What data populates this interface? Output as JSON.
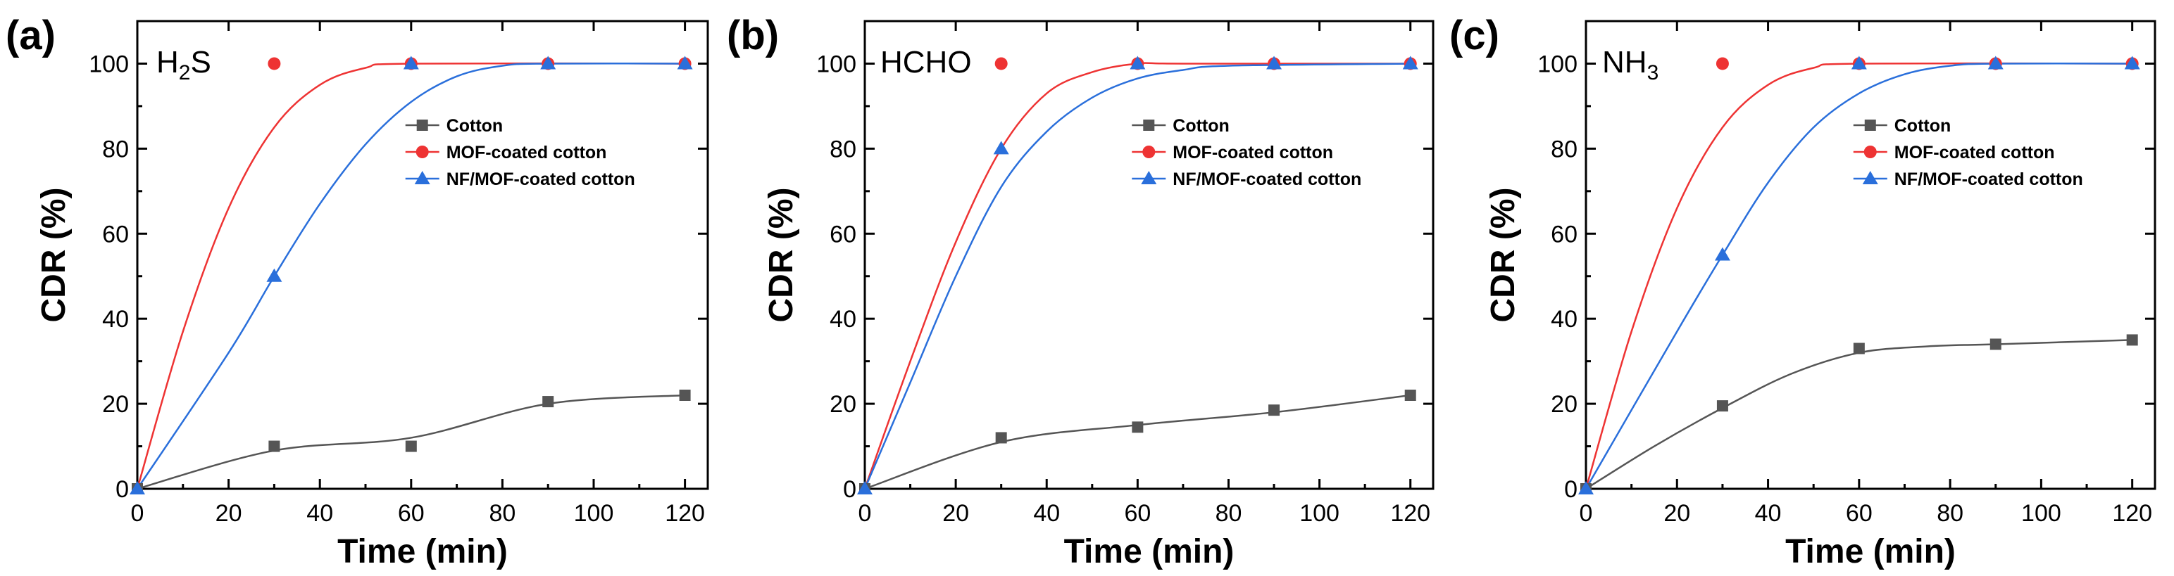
{
  "figure": {
    "x_axis_label": "Time (min)",
    "y_axis_label": "CDR (%)"
  },
  "chart_data": [
    {
      "type": "scatter",
      "panel_label": "(a)",
      "gas_main": "H",
      "gas_sub": "2",
      "gas_tail": "S",
      "xlabel": "Time (min)",
      "ylabel": "CDR (%)",
      "xlim": [
        0,
        125
      ],
      "ylim": [
        0,
        110
      ],
      "xticks": [
        0,
        20,
        40,
        60,
        80,
        100,
        120
      ],
      "yticks": [
        0,
        20,
        40,
        60,
        80,
        100
      ],
      "legend_position": "middle-right",
      "series": [
        {
          "name": "Cotton",
          "marker": "square",
          "color": "#555555",
          "x": [
            0,
            30,
            60,
            90,
            120
          ],
          "y": [
            0,
            10,
            10,
            20.5,
            22
          ]
        },
        {
          "name": "MOF-coated cotton",
          "marker": "circle",
          "color": "#ee3333",
          "x": [
            30,
            60,
            90,
            120
          ],
          "y": [
            100,
            100,
            100,
            100
          ]
        },
        {
          "name": "NF/MOF-coated cotton",
          "marker": "triangle",
          "color": "#2a6fdb",
          "x": [
            0,
            30,
            60,
            90,
            120
          ],
          "y": [
            0,
            50,
            100,
            100,
            100
          ]
        }
      ],
      "fit_curves": [
        {
          "series": "Cotton",
          "color": "#555555",
          "x": [
            0,
            30,
            60,
            90,
            120
          ],
          "y": [
            0,
            9,
            12,
            20,
            22
          ]
        },
        {
          "series": "MOF-coated cotton",
          "color": "#ee3333",
          "x": [
            0,
            10,
            20,
            30,
            40,
            50,
            60,
            120
          ],
          "y": [
            0,
            37,
            66,
            85,
            95,
            99,
            100,
            100
          ]
        },
        {
          "series": "NF/MOF-coated cotton",
          "color": "#2a6fdb",
          "x": [
            0,
            20,
            30,
            40,
            50,
            60,
            70,
            80,
            90,
            120
          ],
          "y": [
            0,
            32,
            50,
            67,
            81,
            91,
            97,
            99.5,
            100,
            100
          ]
        }
      ]
    },
    {
      "type": "scatter",
      "panel_label": "(b)",
      "gas_main": "HCHO",
      "gas_sub": "",
      "gas_tail": "",
      "xlabel": "Time (min)",
      "ylabel": "CDR (%)",
      "xlim": [
        0,
        125
      ],
      "ylim": [
        0,
        110
      ],
      "xticks": [
        0,
        20,
        40,
        60,
        80,
        100,
        120
      ],
      "yticks": [
        0,
        20,
        40,
        60,
        80,
        100
      ],
      "legend_position": "middle-right",
      "series": [
        {
          "name": "Cotton",
          "marker": "square",
          "color": "#555555",
          "x": [
            0,
            30,
            60,
            90,
            120
          ],
          "y": [
            0,
            12,
            14.5,
            18.5,
            22
          ]
        },
        {
          "name": "MOF-coated cotton",
          "marker": "circle",
          "color": "#ee3333",
          "x": [
            30,
            60,
            90,
            120
          ],
          "y": [
            100,
            100,
            100,
            100
          ]
        },
        {
          "name": "NF/MOF-coated cotton",
          "marker": "triangle",
          "color": "#2a6fdb",
          "x": [
            0,
            30,
            60,
            90,
            120
          ],
          "y": [
            0,
            80,
            100,
            100,
            100
          ]
        }
      ],
      "fit_curves": [
        {
          "series": "Cotton",
          "color": "#555555",
          "x": [
            0,
            30,
            60,
            90,
            120
          ],
          "y": [
            0,
            11,
            15,
            18,
            22
          ]
        },
        {
          "series": "MOF-coated cotton",
          "color": "#ee3333",
          "x": [
            0,
            10,
            20,
            30,
            40,
            50,
            60,
            70,
            120
          ],
          "y": [
            0,
            30,
            58,
            80,
            93,
            98,
            100,
            100,
            100
          ]
        },
        {
          "series": "NF/MOF-coated cotton",
          "color": "#2a6fdb",
          "x": [
            0,
            10,
            20,
            30,
            40,
            50,
            60,
            70,
            80,
            120
          ],
          "y": [
            0,
            25,
            50,
            71,
            84,
            92,
            96.5,
            98.5,
            99.5,
            100
          ]
        }
      ]
    },
    {
      "type": "scatter",
      "panel_label": "(c)",
      "gas_main": "NH",
      "gas_sub": "3",
      "gas_tail": "",
      "xlabel": "Time (min)",
      "ylabel": "CDR (%)",
      "xlim": [
        0,
        125
      ],
      "ylim": [
        0,
        110
      ],
      "xticks": [
        0,
        20,
        40,
        60,
        80,
        100,
        120
      ],
      "yticks": [
        0,
        20,
        40,
        60,
        80,
        100
      ],
      "legend_position": "middle-right",
      "series": [
        {
          "name": "Cotton",
          "marker": "square",
          "color": "#555555",
          "x": [
            0,
            30,
            60,
            90,
            120
          ],
          "y": [
            0,
            19.5,
            33,
            34,
            35
          ]
        },
        {
          "name": "MOF-coated cotton",
          "marker": "circle",
          "color": "#ee3333",
          "x": [
            30,
            60,
            90,
            120
          ],
          "y": [
            100,
            100,
            100,
            100
          ]
        },
        {
          "name": "NF/MOF-coated cotton",
          "marker": "triangle",
          "color": "#2a6fdb",
          "x": [
            0,
            30,
            60,
            90,
            120
          ],
          "y": [
            0,
            55,
            100,
            100,
            100
          ]
        }
      ],
      "fit_curves": [
        {
          "series": "Cotton",
          "color": "#555555",
          "x": [
            0,
            15,
            30,
            45,
            60,
            75,
            90,
            120
          ],
          "y": [
            0,
            10,
            19,
            27,
            32,
            33.5,
            34,
            35
          ]
        },
        {
          "series": "MOF-coated cotton",
          "color": "#ee3333",
          "x": [
            0,
            10,
            20,
            30,
            40,
            50,
            60,
            120
          ],
          "y": [
            0,
            37,
            66,
            85,
            95,
            99,
            100,
            100
          ]
        },
        {
          "series": "NF/MOF-coated cotton",
          "color": "#2a6fdb",
          "x": [
            0,
            20,
            30,
            40,
            50,
            60,
            70,
            80,
            90,
            120
          ],
          "y": [
            0,
            37,
            55,
            72,
            85,
            93,
            97.5,
            99.5,
            100,
            100
          ]
        }
      ]
    }
  ]
}
